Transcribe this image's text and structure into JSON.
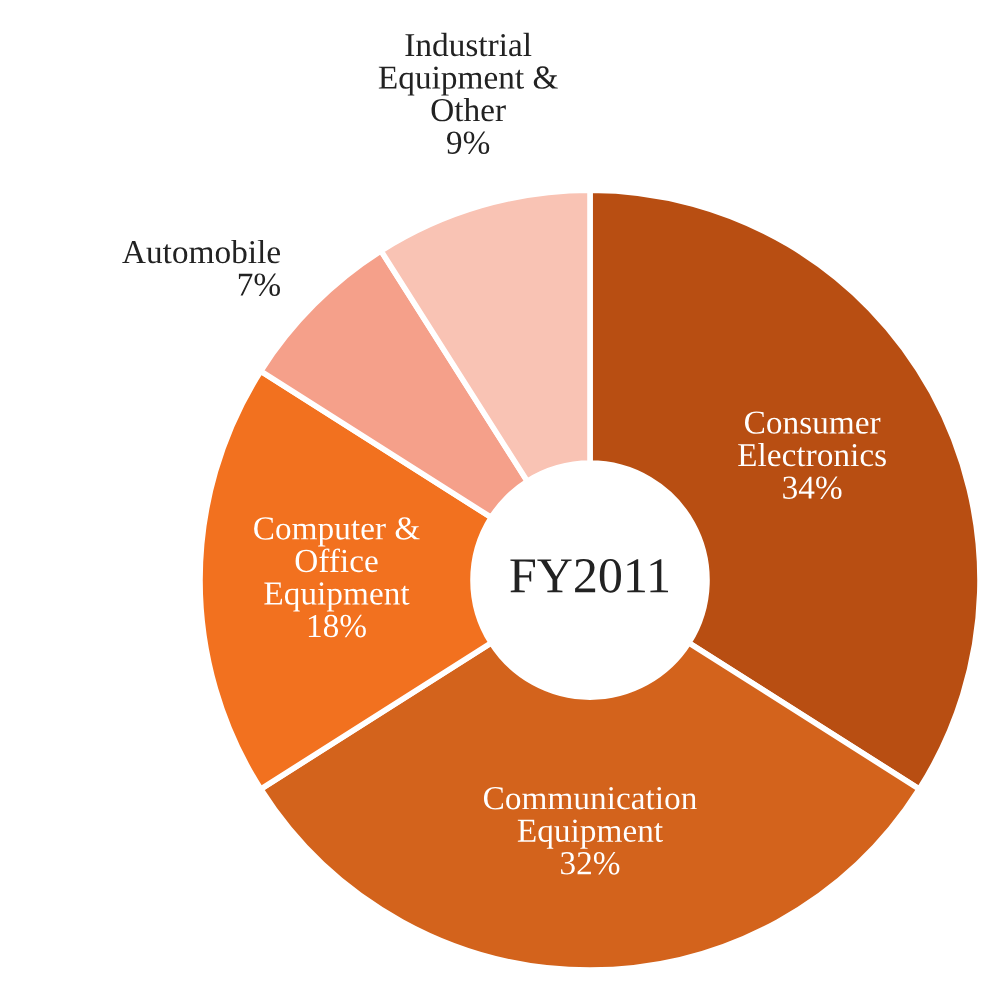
{
  "chart_data": {
    "type": "donut",
    "categories": [
      "Consumer\nElectronics",
      "Communication\nEquipment",
      "Computer &\nOffice\nEquipment",
      "Automobile",
      "Industrial\nEquipment &\nOther"
    ],
    "values": [
      34,
      32,
      18,
      7,
      9
    ],
    "colors": [
      "#b84e12",
      "#d3631c",
      "#f2711f",
      "#f5a08a",
      "#f9c3b4"
    ],
    "value_labels": [
      "34%",
      "32%",
      "18%",
      "7%",
      "9%"
    ],
    "annotations": [
      "FY2011"
    ]
  }
}
